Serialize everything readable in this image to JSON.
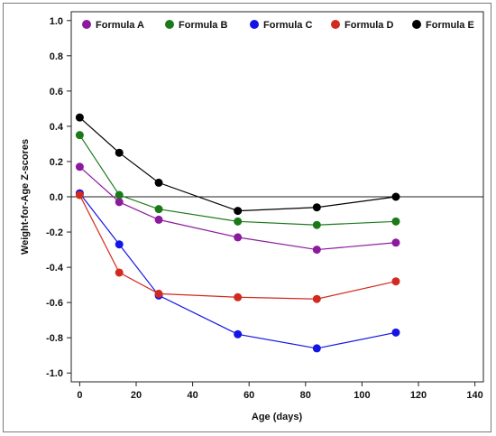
{
  "chart_data": {
    "type": "line",
    "title": "",
    "xlabel": "Age (days)",
    "ylabel": "Weight-for-Age Z-scores",
    "xlim": [
      -3,
      143
    ],
    "ylim": [
      -1.05,
      1.05
    ],
    "xticks": [
      0,
      20,
      40,
      60,
      80,
      100,
      120,
      140
    ],
    "yticks": [
      1.0,
      0.8,
      0.6,
      0.4,
      0.2,
      0.0,
      -0.2,
      -0.4,
      -0.6,
      -0.8,
      -1.0
    ],
    "reference_line_y": 0,
    "legend_position": "top",
    "x": [
      0,
      14,
      28,
      56,
      84,
      112
    ],
    "series": [
      {
        "name": "Formula A",
        "color": "#8b1a9e",
        "values": [
          0.17,
          -0.03,
          -0.13,
          -0.23,
          -0.3,
          -0.26
        ]
      },
      {
        "name": "Formula B",
        "color": "#1a7a1a",
        "values": [
          0.35,
          0.01,
          -0.07,
          -0.14,
          -0.16,
          -0.14
        ]
      },
      {
        "name": "Formula C",
        "color": "#1414e6",
        "values": [
          0.02,
          -0.27,
          -0.56,
          -0.78,
          -0.86,
          -0.77
        ]
      },
      {
        "name": "Formula D",
        "color": "#d22a1e",
        "values": [
          0.01,
          -0.43,
          -0.55,
          -0.57,
          -0.58,
          -0.48
        ]
      },
      {
        "name": "Formula E",
        "color": "#000000",
        "values": [
          0.45,
          0.25,
          0.08,
          -0.08,
          -0.06,
          0.0
        ]
      }
    ]
  }
}
